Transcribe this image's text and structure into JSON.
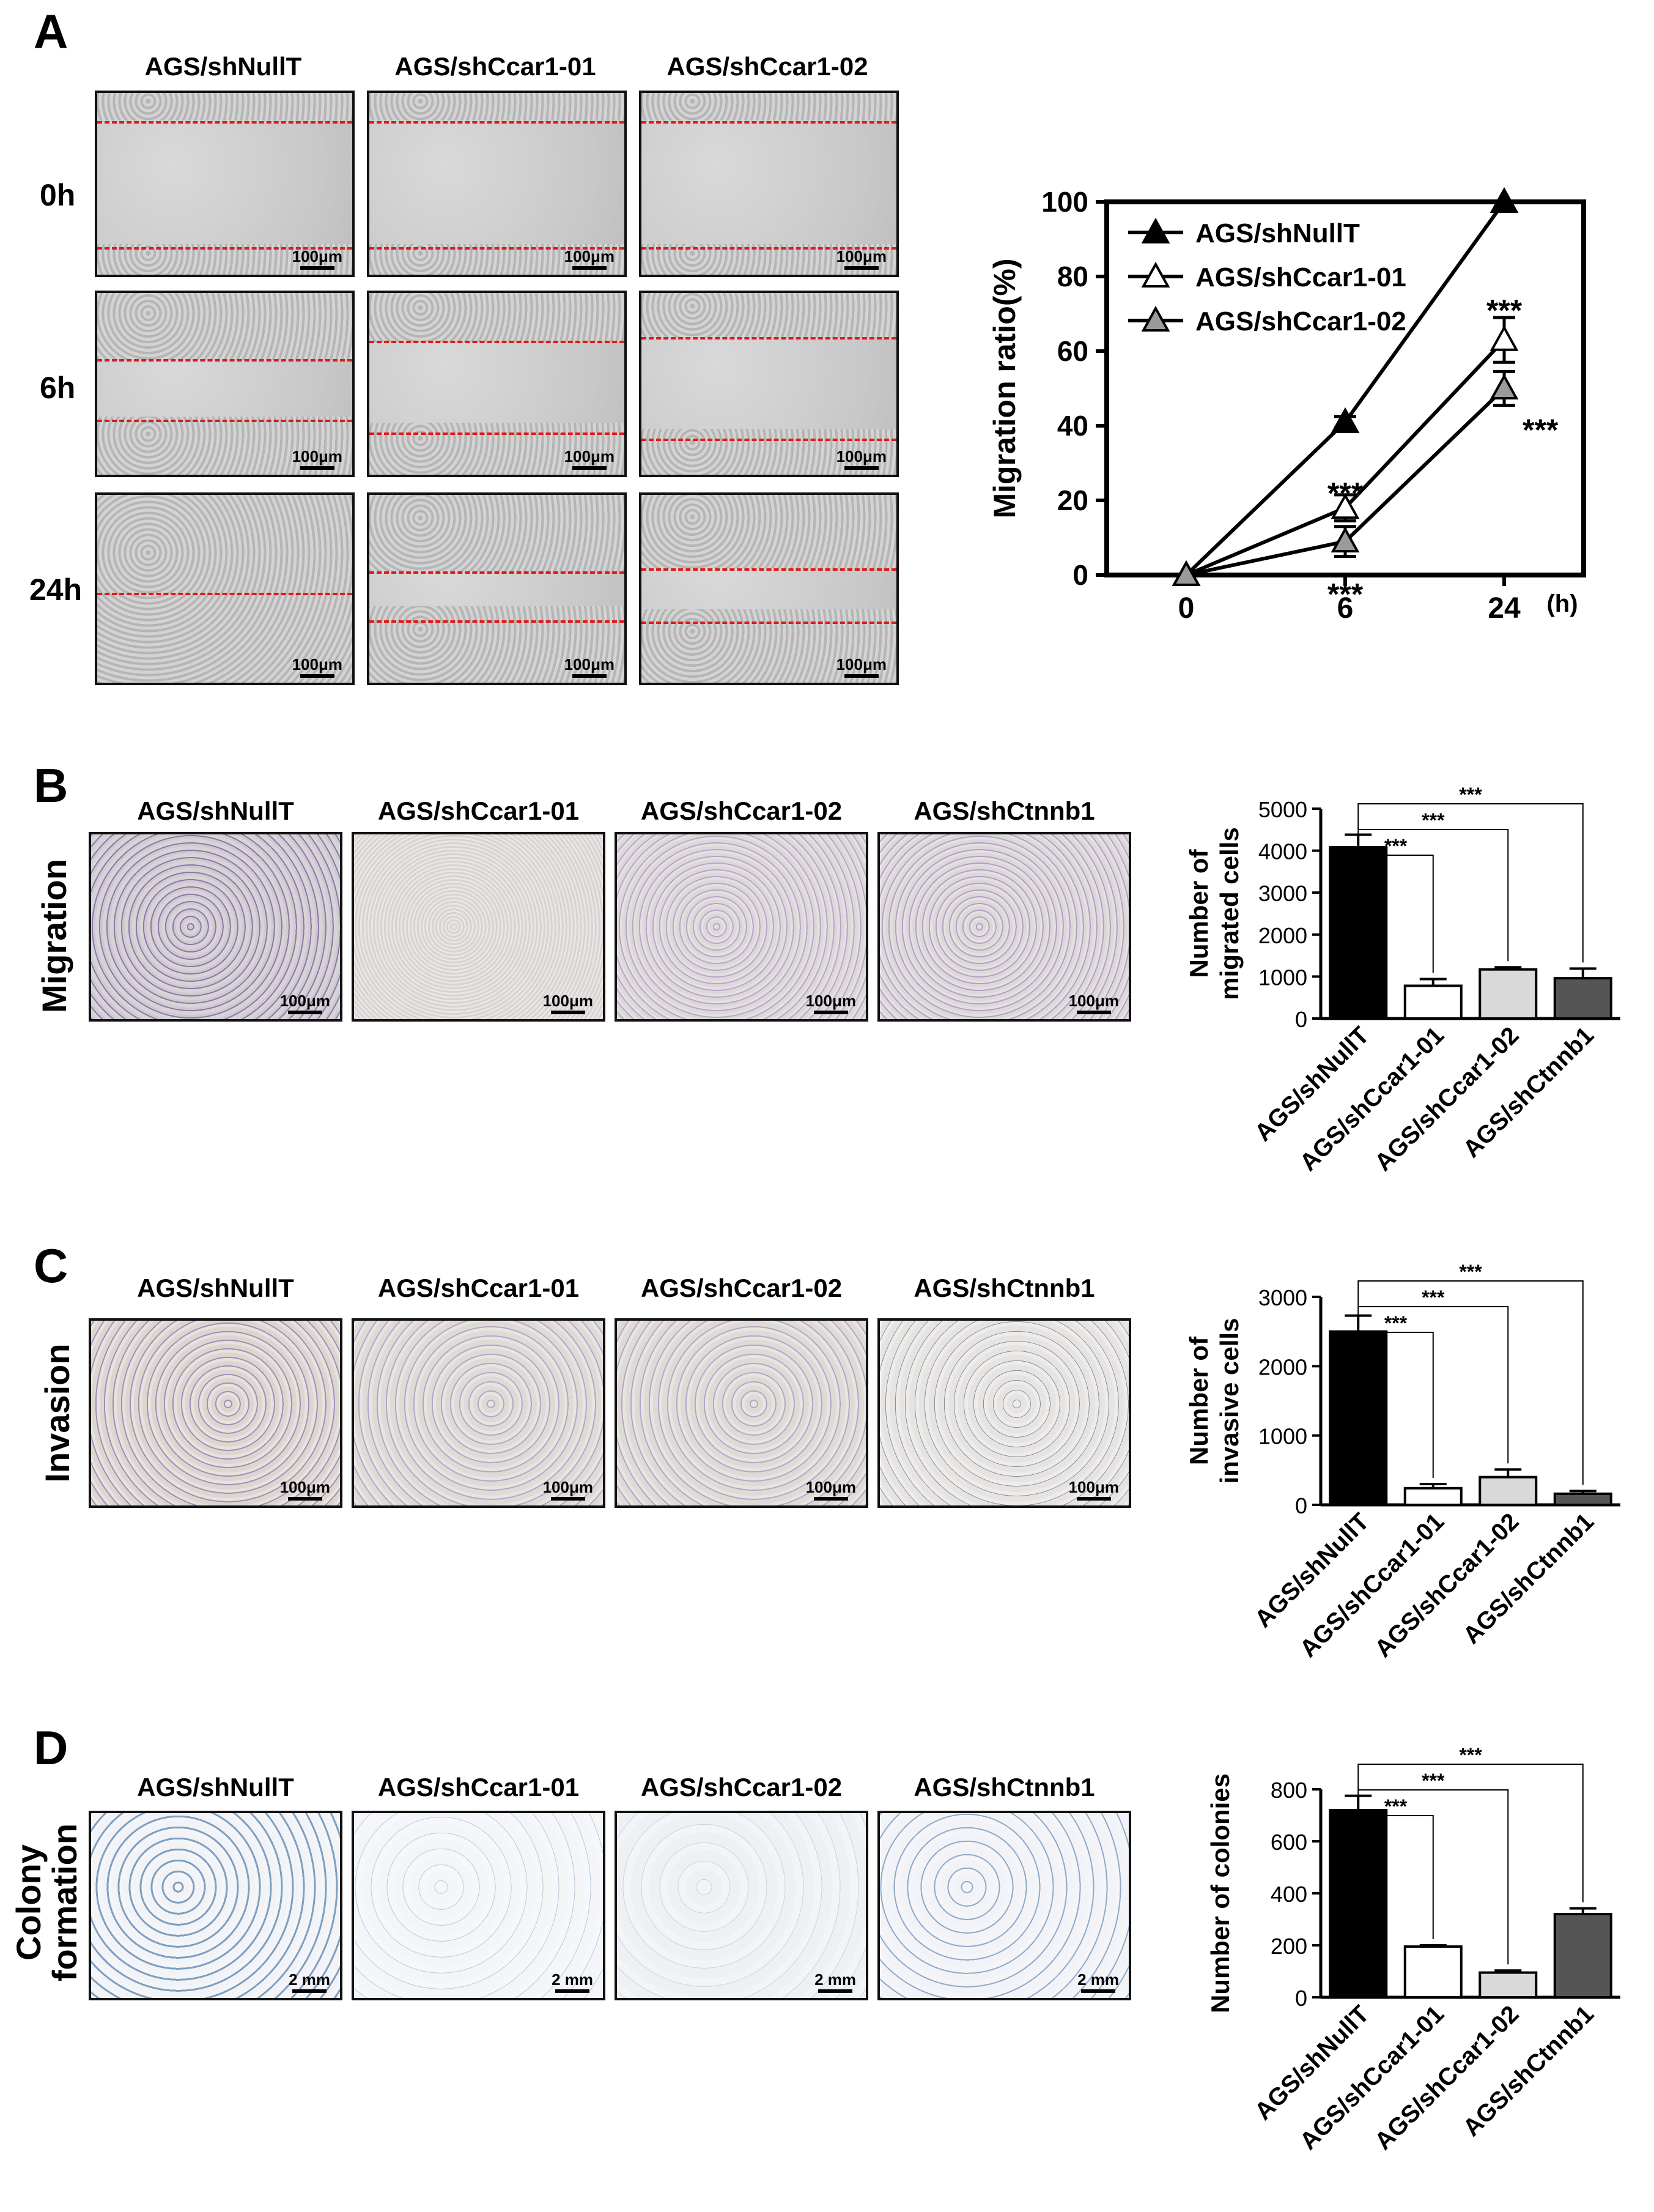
{
  "panels": {
    "A": {
      "letter": "A",
      "columns": [
        "AGS/shNullT",
        "AGS/shCcar1-01",
        "AGS/shCcar1-02"
      ],
      "rows": [
        "0h",
        "6h",
        "24h"
      ],
      "scale": "100μm"
    },
    "B": {
      "letter": "B",
      "side_label": "Migration",
      "columns": [
        "AGS/shNullT",
        "AGS/shCcar1-01",
        "AGS/shCcar1-02",
        "AGS/shCtnnb1"
      ],
      "scale": "100μm"
    },
    "C": {
      "letter": "C",
      "side_label": "Invasion",
      "columns": [
        "AGS/shNullT",
        "AGS/shCcar1-01",
        "AGS/shCcar1-02",
        "AGS/shCtnnb1"
      ],
      "scale": "100μm"
    },
    "D": {
      "letter": "D",
      "side_label_1": "Colony",
      "side_label_2": "formation",
      "columns": [
        "AGS/shNullT",
        "AGS/shCcar1-01",
        "AGS/shCcar1-02",
        "AGS/shCtnnb1"
      ],
      "scale": "2 mm"
    }
  },
  "chart_data": [
    {
      "type": "line",
      "x": [
        0,
        6,
        24
      ],
      "x_tick_labels": [
        "0",
        "6",
        "24"
      ],
      "x_unit": "(h)",
      "ylabel": "Migration ratio(%)",
      "ylim": [
        0,
        100
      ],
      "yticks": [
        0,
        20,
        40,
        60,
        80,
        100
      ],
      "legend_position": "top-left",
      "series": [
        {
          "name": "AGS/shNullT",
          "values": [
            0,
            41,
            100
          ],
          "err": [
            0,
            1.5,
            0
          ],
          "marker": "filled-black"
        },
        {
          "name": "AGS/shCcar1-01",
          "values": [
            0,
            18,
            63
          ],
          "err": [
            0,
            3.5,
            6
          ],
          "marker": "open"
        },
        {
          "name": "AGS/shCcar1-02",
          "values": [
            0,
            9,
            50
          ],
          "err": [
            0,
            4,
            4.5
          ],
          "marker": "gray"
        }
      ],
      "annotations": [
        "***",
        "***",
        "***",
        "***"
      ],
      "colors": {
        "series1": "#000000",
        "series2": "#ffffff",
        "series3": "#999999"
      }
    },
    {
      "type": "bar",
      "categories": [
        "AGS/shNullT",
        "AGS/shCcar1-01",
        "AGS/shCcar1-02",
        "AGS/shCtnnb1"
      ],
      "values": [
        4080,
        780,
        1170,
        960
      ],
      "err": [
        300,
        160,
        50,
        230
      ],
      "ylabel_1": "Number of",
      "ylabel_2": "migrated cells",
      "ylim": [
        0,
        5000
      ],
      "yticks": [
        0,
        1000,
        2000,
        3000,
        4000,
        5000
      ],
      "significance": [
        "***",
        "***",
        "***"
      ],
      "colors": [
        "#000000",
        "#ffffff",
        "#d9d9d9",
        "#555555"
      ]
    },
    {
      "type": "bar",
      "categories": [
        "AGS/shNullT",
        "AGS/shCcar1-01",
        "AGS/shCcar1-02",
        "AGS/shCtnnb1"
      ],
      "values": [
        2500,
        240,
        400,
        160
      ],
      "err": [
        230,
        60,
        110,
        40
      ],
      "ylabel_1": "Number of",
      "ylabel_2": "invasive cells",
      "ylim": [
        0,
        3000
      ],
      "yticks": [
        0,
        1000,
        2000,
        3000
      ],
      "significance": [
        "***",
        "***",
        "***"
      ],
      "colors": [
        "#000000",
        "#ffffff",
        "#d9d9d9",
        "#555555"
      ]
    },
    {
      "type": "bar",
      "categories": [
        "AGS/shNullT",
        "AGS/shCcar1-01",
        "AGS/shCcar1-02",
        "AGS/shCtnnb1"
      ],
      "values": [
        720,
        195,
        95,
        320
      ],
      "err": [
        55,
        5,
        8,
        22
      ],
      "ylabel": "Number of colonies",
      "ylim": [
        0,
        800
      ],
      "yticks": [
        0,
        200,
        400,
        600,
        800
      ],
      "significance": [
        "***",
        "***",
        "***"
      ],
      "colors": [
        "#000000",
        "#ffffff",
        "#d9d9d9",
        "#555555"
      ]
    }
  ]
}
